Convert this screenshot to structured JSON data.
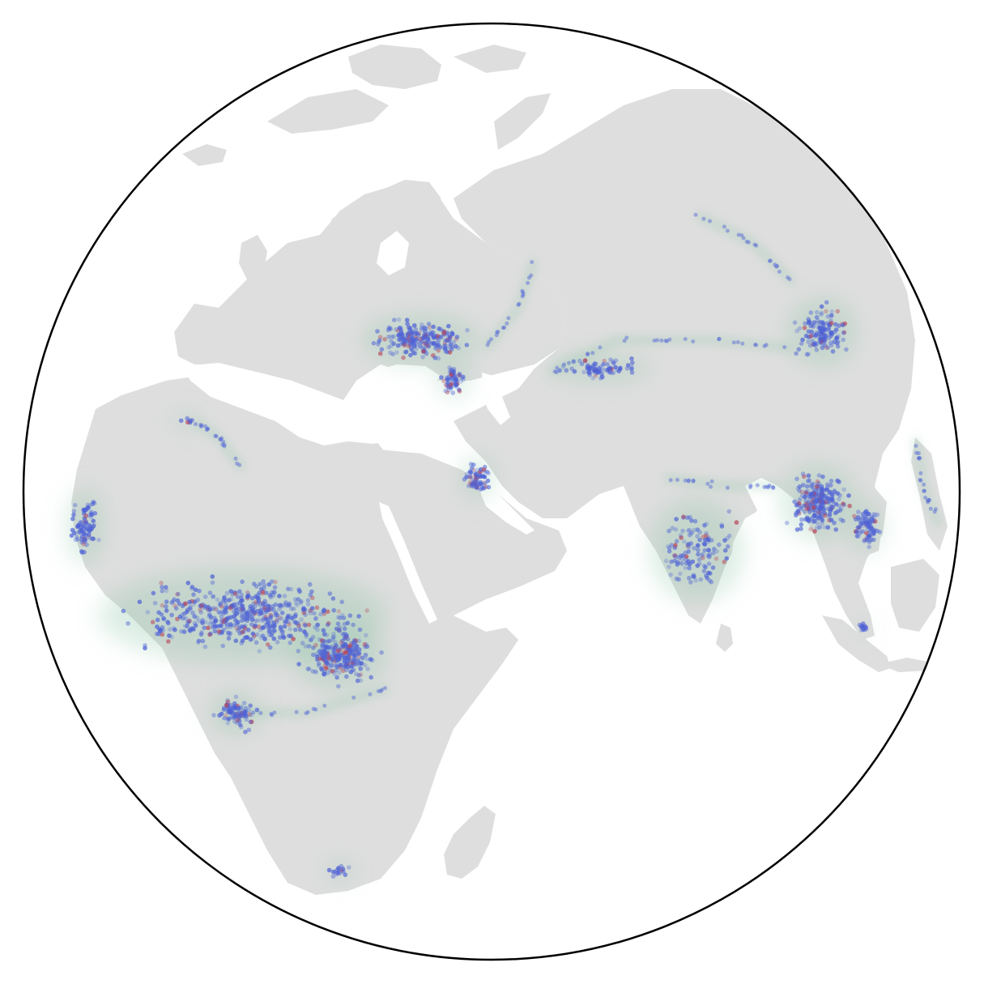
{
  "map": {
    "projection": "orthographic",
    "colors": {
      "ocean": "#ffffff",
      "land": "#dedede",
      "outline": "#000000",
      "density_glow": "#7fbf9f",
      "point_primary": "#4f63d6",
      "point_secondary": "#b8465a"
    },
    "layers": [
      "land-masses",
      "density-heatmap",
      "event-points"
    ]
  }
}
